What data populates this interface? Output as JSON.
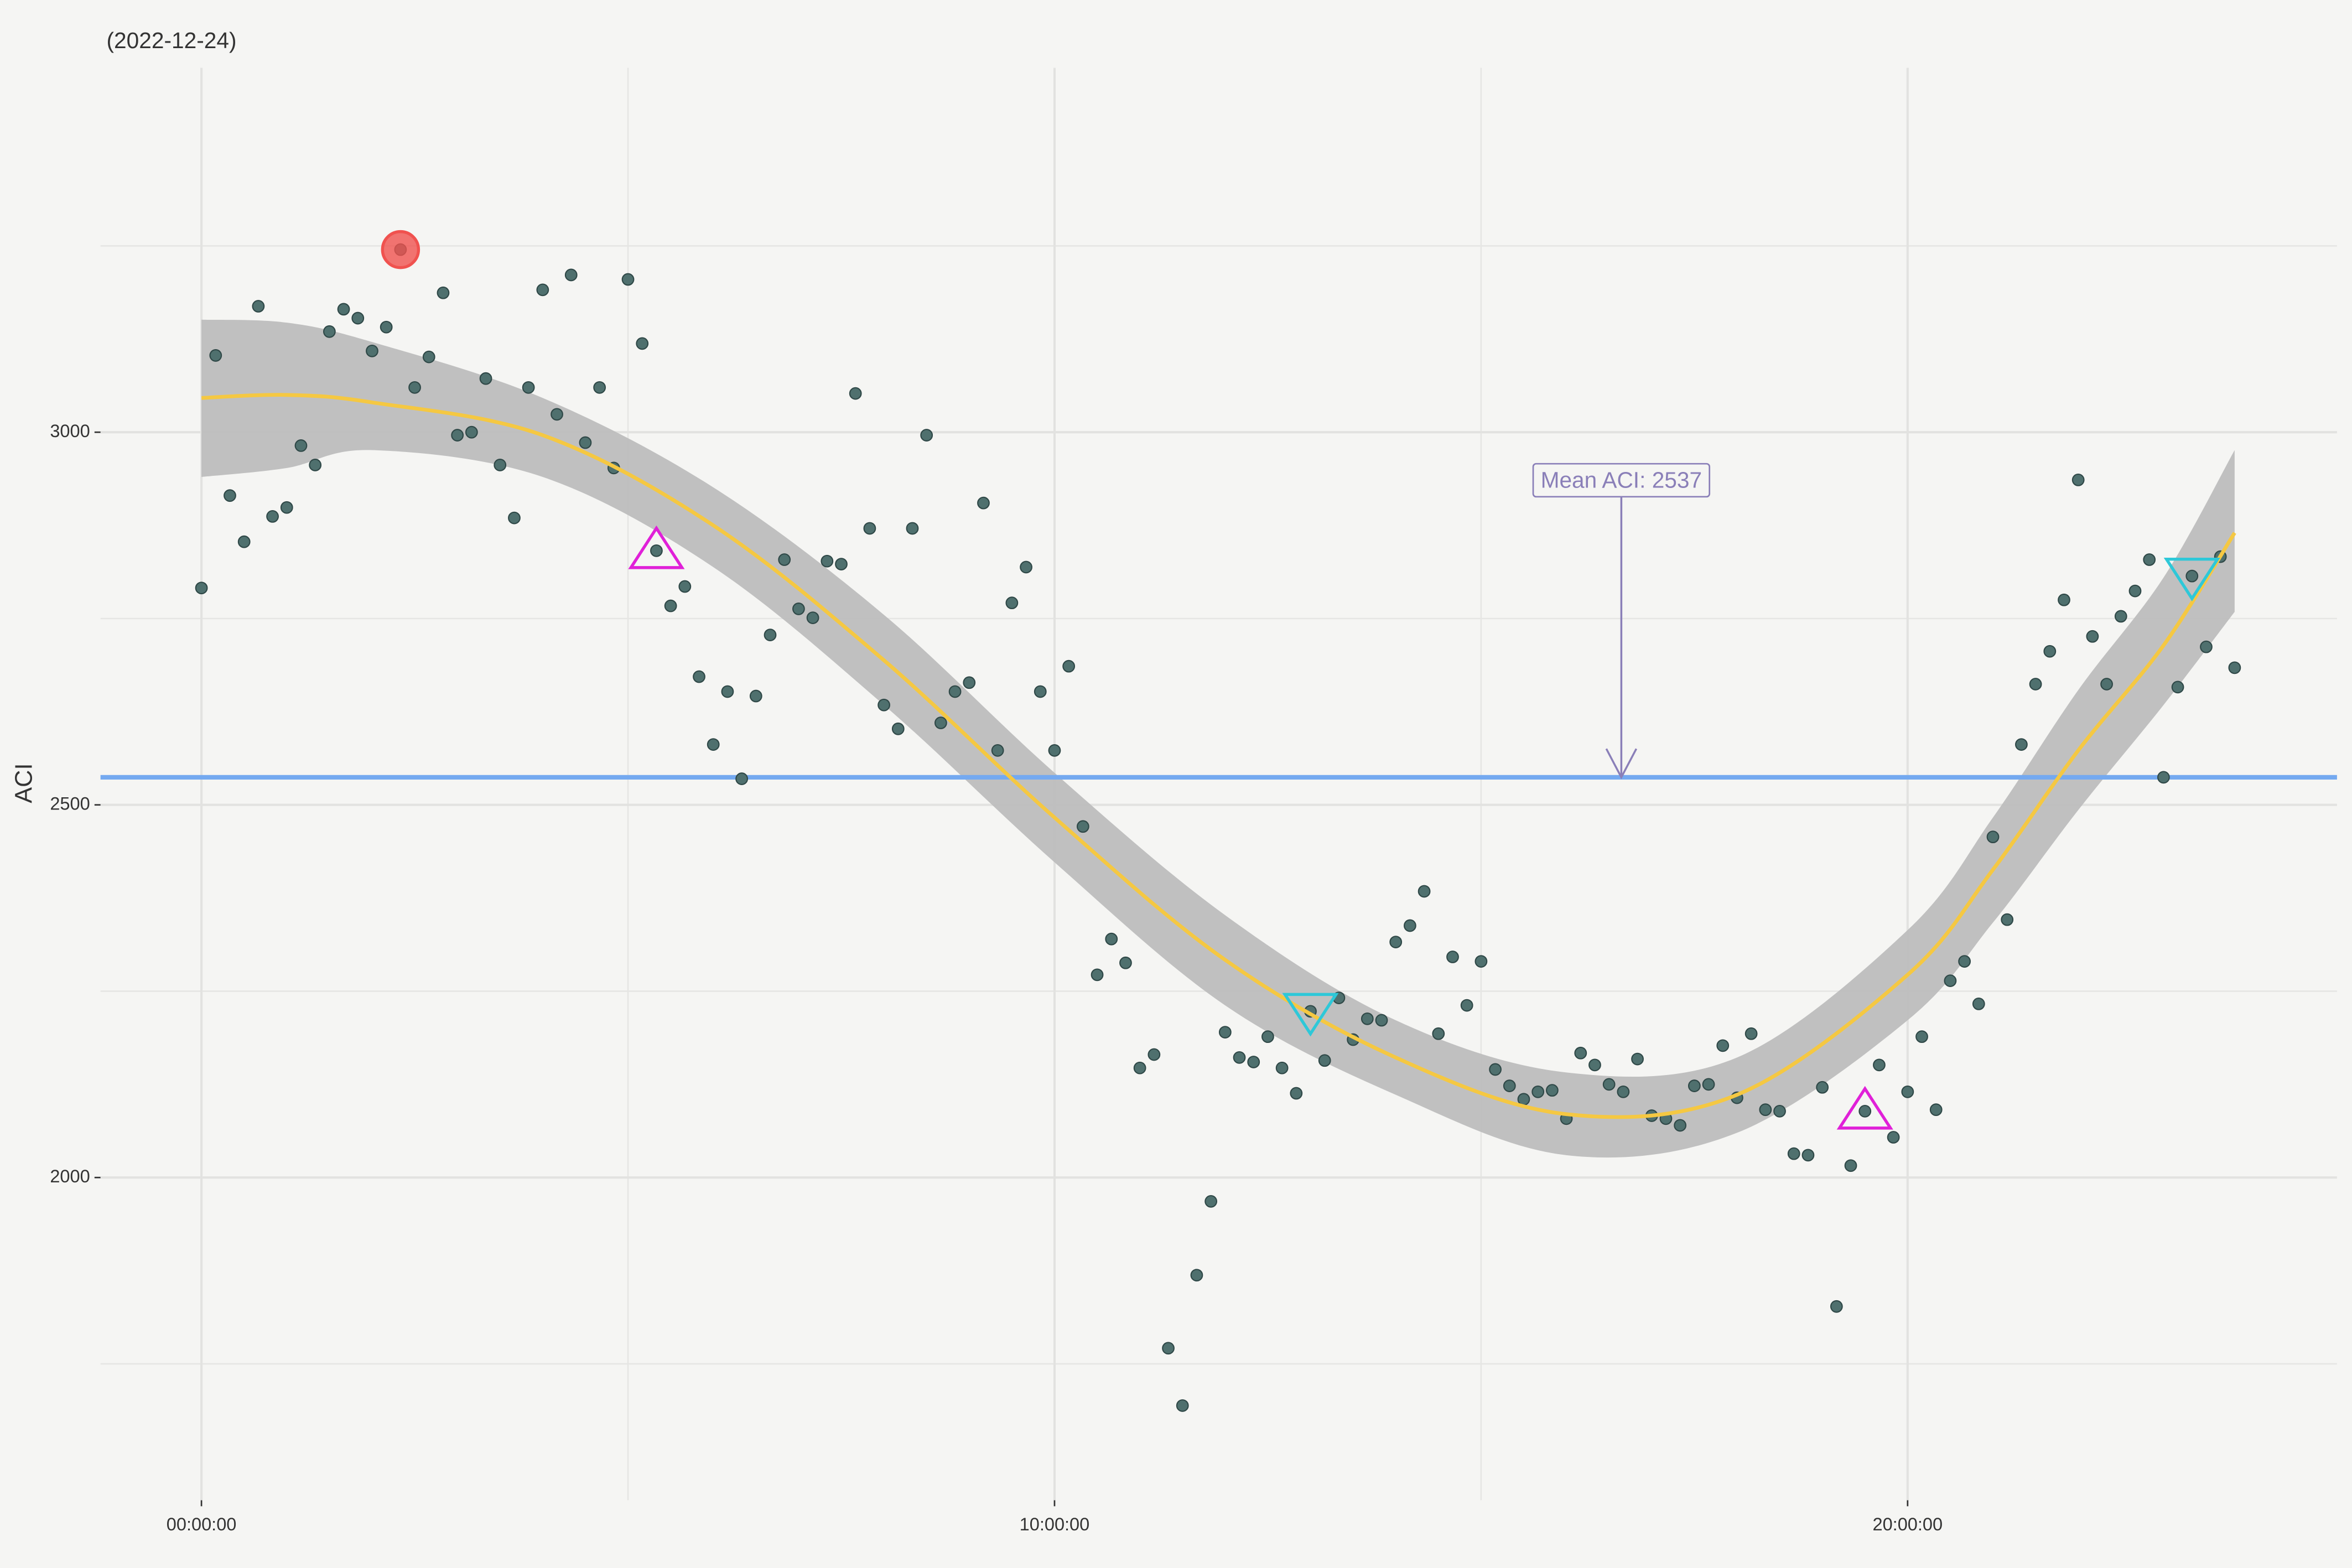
{
  "chart_data": {
    "type": "scatter",
    "title": "(2022-12-24)",
    "y_label": "ACI",
    "series": [
      {
        "color": "#4f706e",
        "x": [
          0,
          10,
          20,
          30,
          40,
          50,
          60,
          70,
          80,
          90,
          100,
          110,
          120,
          130,
          140,
          150,
          160,
          170,
          180,
          190,
          200,
          210,
          220,
          230,
          240,
          250,
          260,
          270,
          280,
          290,
          300,
          310,
          320,
          330,
          340,
          350,
          360,
          370,
          380,
          390,
          400,
          410,
          420,
          430,
          440,
          450,
          460,
          470,
          480,
          490,
          500,
          510,
          520,
          530,
          540,
          550,
          560,
          570,
          580,
          590,
          600,
          610,
          620,
          630,
          640,
          650,
          660,
          670,
          680,
          690,
          700,
          710,
          720,
          730,
          740,
          750,
          760,
          770,
          780,
          790,
          800,
          810,
          820,
          830,
          840,
          850,
          860,
          870,
          880,
          890,
          900,
          910,
          920,
          930,
          940,
          950,
          960,
          970,
          980,
          990,
          1000,
          1010,
          1020,
          1030,
          1040,
          1050,
          1060,
          1070,
          1080,
          1090,
          1100,
          1110,
          1120,
          1130,
          1140,
          1150,
          1160,
          1170,
          1180,
          1190,
          1200,
          1210,
          1220,
          1230,
          1240,
          1250,
          1260,
          1270,
          1280,
          1290,
          1300,
          1310,
          1320,
          1330,
          1340,
          1350,
          1360,
          1370,
          1380,
          1390,
          1400,
          1410,
          1420,
          1430
        ],
        "values": [
          2791,
          3103,
          2915,
          2853,
          3169,
          2887,
          2899,
          2982,
          2956,
          3135,
          3165,
          3153,
          3109,
          3141,
          3245,
          3060,
          3101,
          3187,
          2996,
          3000,
          3072,
          2956,
          2885,
          3060,
          3191,
          3024,
          3211,
          2986,
          3060,
          2952,
          3205,
          3119,
          2841,
          2767,
          2793,
          2672,
          2581,
          2652,
          2535,
          2646,
          2728,
          2829,
          2763,
          2751,
          2827,
          2823,
          3052,
          2871,
          2634,
          2602,
          2871,
          2996,
          2610,
          2652,
          2664,
          2905,
          2573,
          2771,
          2819,
          2652,
          2573,
          2686,
          2471,
          2272,
          2320,
          2288,
          2147,
          2165,
          1771,
          1694,
          1869,
          1968,
          2195,
          2161,
          2155,
          2189,
          2147,
          2113,
          2223,
          2157,
          2241,
          2185,
          2213,
          2211,
          2316,
          2338,
          2384,
          2193,
          2296,
          2231,
          2290,
          2145,
          2123,
          2105,
          2115,
          2117,
          2079,
          2167,
          2151,
          2125,
          2115,
          2159,
          2083,
          2079,
          2070,
          2123,
          2125,
          2177,
          2107,
          2193,
          2091,
          2089,
          2032,
          2030,
          2121,
          1827,
          2016,
          2089,
          2151,
          2054,
          2115,
          2189,
          2091,
          2264,
          2290,
          2233,
          2457,
          2346,
          2581,
          2662,
          2706,
          2775,
          2936,
          2726,
          2662,
          2753,
          2787,
          2829,
          2537,
          2658,
          2807,
          2712,
          2833,
          2684
        ]
      }
    ],
    "smooth": {
      "color": "#f5c842",
      "fill": "#bdbdbd",
      "x": [
        0,
        60,
        120,
        240,
        360,
        480,
        600,
        720,
        840,
        960,
        1080,
        1200,
        1260,
        1320,
        1380,
        1430
      ],
      "values": [
        3046,
        3050,
        3040,
        2996,
        2875,
        2694,
        2483,
        2292,
        2161,
        2085,
        2111,
        2272,
        2413,
        2573,
        2714,
        2865
      ],
      "lower": [
        2940,
        2952,
        2976,
        2940,
        2819,
        2634,
        2423,
        2231,
        2111,
        2030,
        2060,
        2211,
        2342,
        2493,
        2634,
        2759
      ],
      "upper": [
        3151,
        3147,
        3121,
        3046,
        2926,
        2755,
        2543,
        2352,
        2211,
        2141,
        2161,
        2332,
        2483,
        2654,
        2805,
        2976
      ]
    },
    "markers": [
      {
        "shape": "circle",
        "color": "#f0524f",
        "x": [
          140
        ],
        "values": [
          3245
        ]
      },
      {
        "shape": "triangle-up",
        "color": "#e020d8",
        "x": [
          320,
          1170
        ],
        "values": [
          2841,
          2089
        ]
      },
      {
        "shape": "triangle-down",
        "color": "#2ec8d8",
        "x": [
          780,
          1400
        ],
        "values": [
          2223,
          2807
        ]
      }
    ],
    "mean": {
      "value": 2537,
      "label": "Mean ACI:  2537",
      "color": "#74a9f0",
      "annotation_color": "#8a7fb8"
    },
    "xlim": [
      -71,
      1502
    ],
    "ylim": [
      1567,
      3489
    ],
    "xticks": [
      {
        "value": 0,
        "label": "00:00:00"
      },
      {
        "value": 600,
        "label": "10:00:00"
      },
      {
        "value": 1200,
        "label": "20:00:00"
      }
    ],
    "yticks": [
      2000,
      2500,
      3000
    ],
    "minor_xticks": [
      300,
      900
    ],
    "minor_yticks": [
      1750,
      2250,
      2750,
      3250
    ],
    "grid": true
  }
}
